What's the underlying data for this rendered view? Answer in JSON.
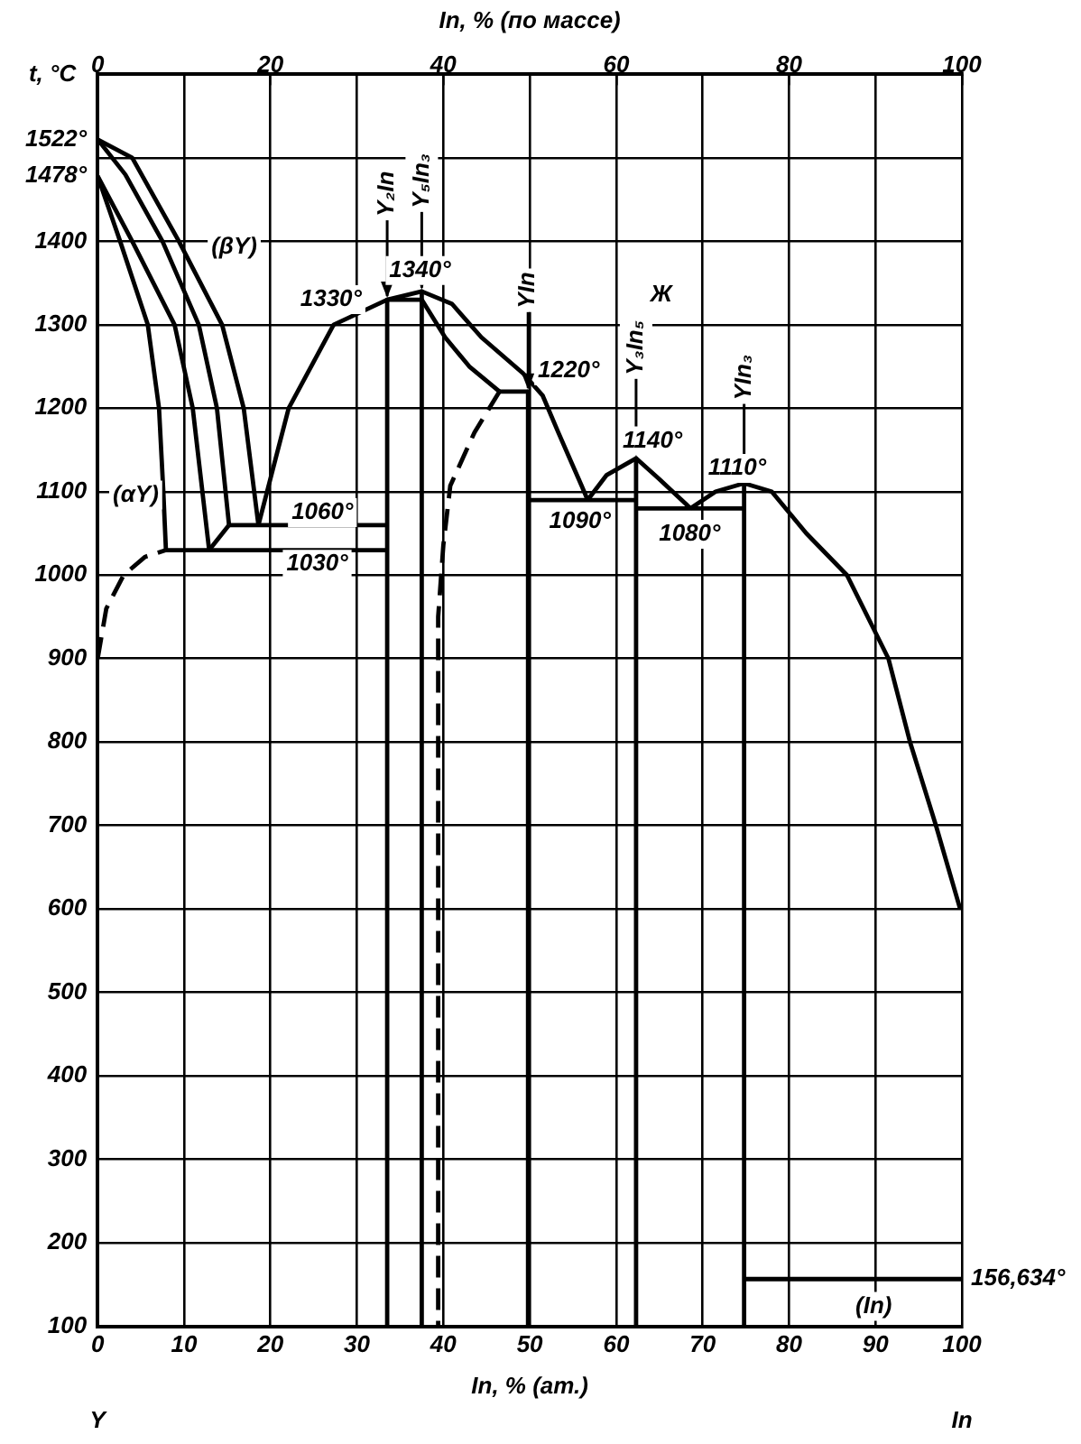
{
  "chart_data": {
    "type": "line",
    "xlabel": "In, % (ат.)",
    "x2label": "In, % (по массе)",
    "ylabel": "t, °C",
    "xlim": [
      0,
      100
    ],
    "xticks": [
      0,
      10,
      20,
      30,
      40,
      50,
      60,
      70,
      80,
      90,
      100
    ],
    "x2lim": [
      0,
      100
    ],
    "x2ticks": [
      0,
      20,
      40,
      60,
      80,
      100
    ],
    "ylim": [
      100,
      1600
    ],
    "yticks": [
      100,
      200,
      300,
      400,
      500,
      600,
      700,
      800,
      900,
      1000,
      1100,
      1200,
      1300,
      1400,
      {
        "value": 1478,
        "label": "1478°"
      },
      {
        "value": 1500,
        "label": null
      },
      {
        "value": 1522,
        "label": "1522°"
      }
    ],
    "grid": true,
    "legend": false,
    "marker": "none",
    "series": [
      {
        "color": "#000000",
        "x": [
          0,
          4,
          9.4,
          14.4,
          16.9,
          18.6
        ],
        "values": [
          1522,
          1500,
          1400,
          1300,
          1200,
          1060
        ]
      },
      {
        "color": "#000000",
        "x": [
          0,
          3.2,
          7.5,
          11.7,
          13.8,
          15.2
        ],
        "values": [
          1522,
          1480,
          1400,
          1300,
          1200,
          1060
        ]
      },
      {
        "color": "#000000",
        "x": [
          0,
          4,
          8.9,
          11,
          12.9
        ],
        "values": [
          1478,
          1400,
          1300,
          1200,
          1030
        ]
      },
      {
        "color": "#000000",
        "x": [
          0,
          2.6,
          5.8,
          7.1,
          7.6,
          7.9
        ],
        "values": [
          1478,
          1400,
          1300,
          1200,
          1100,
          1030
        ]
      },
      {
        "color": "#000000",
        "x": [
          12.9,
          15.2
        ],
        "values": [
          1030,
          1060
        ]
      },
      {
        "color": "#000000",
        "x": [
          15.2,
          33.5
        ],
        "values": [
          1060,
          1060
        ]
      },
      {
        "color": "#000000",
        "x": [
          7.9,
          33.5
        ],
        "values": [
          1030,
          1030
        ]
      },
      {
        "color": "#000000",
        "line_style": "dashed",
        "x": [
          0,
          1,
          3,
          5.5,
          7.9
        ],
        "values": [
          900,
          960,
          1000,
          1022,
          1030
        ]
      },
      {
        "color": "#000000",
        "x": [
          18.6,
          19.6,
          22.1,
          27.3,
          33.5,
          37.5,
          41,
          44.4,
          49.2,
          51.5,
          53.3,
          56,
          56.7
        ],
        "values": [
          1060,
          1100,
          1200,
          1300,
          1330,
          1340,
          1325,
          1285,
          1242,
          1215,
          1171,
          1107,
          1090
        ]
      },
      {
        "color": "#000000",
        "x": [
          33.5,
          37.5
        ],
        "values": [
          1330,
          1330
        ]
      },
      {
        "name": "Y₂In",
        "color": "#000000",
        "x": [
          33.5,
          33.5
        ],
        "values": [
          1330,
          100
        ]
      },
      {
        "name": "Y₅In₃",
        "color": "#000000",
        "x": [
          37.5,
          37.5
        ],
        "values": [
          1340,
          100
        ]
      },
      {
        "color": "#000000",
        "x": [
          37.5,
          40.2,
          43,
          46.5
        ],
        "values": [
          1330,
          1285,
          1250,
          1220
        ]
      },
      {
        "color": "#000000",
        "x": [
          46.5,
          49.8
        ],
        "values": [
          1220,
          1220
        ]
      },
      {
        "name": "YIn",
        "color": "#000000",
        "x": [
          49.8,
          49.8
        ],
        "values": [
          1220,
          100
        ]
      },
      {
        "color": "#000000",
        "line_style": "dashed",
        "x": [
          46.5,
          43.6,
          40.8,
          40,
          39.4,
          39.4
        ],
        "values": [
          1220,
          1171,
          1107,
          1036,
          950,
          100
        ]
      },
      {
        "color": "#000000",
        "x": [
          49.8,
          62.3
        ],
        "values": [
          1090,
          1090
        ]
      },
      {
        "color": "#000000",
        "x": [
          56.7,
          58.9,
          62.3,
          65,
          68.6
        ],
        "values": [
          1090,
          1120,
          1140,
          1115,
          1080
        ]
      },
      {
        "name": "Y₃In₅",
        "color": "#000000",
        "x": [
          62.3,
          62.3
        ],
        "values": [
          1140,
          100
        ]
      },
      {
        "color": "#000000",
        "x": [
          62.3,
          74.8
        ],
        "values": [
          1080,
          1080
        ]
      },
      {
        "color": "#000000",
        "x": [
          68.6,
          71.5,
          74.8,
          78,
          82,
          86.7,
          91.5,
          94,
          97,
          99.8
        ],
        "values": [
          1080,
          1100,
          1110,
          1100,
          1050,
          1000,
          900,
          800,
          700,
          600
        ]
      },
      {
        "name": "YIn₃",
        "color": "#000000",
        "x": [
          74.8,
          74.8
        ],
        "values": [
          1110,
          100
        ]
      },
      {
        "color": "#000000",
        "x": [
          74.8,
          100
        ],
        "values": [
          156.634,
          156.634
        ]
      }
    ],
    "annotations": [
      {
        "text": "1330°",
        "x": 27,
        "y": 1330
      },
      {
        "text": "1340°",
        "x": 37.3,
        "y": 1365
      },
      {
        "text": "1220°",
        "x": 54.5,
        "y": 1245
      },
      {
        "text": "1060°",
        "x": 26,
        "y": 1075
      },
      {
        "text": "1030°",
        "x": 25.4,
        "y": 1013
      },
      {
        "text": "1090°",
        "x": 55.8,
        "y": 1064
      },
      {
        "text": "1140°",
        "x": 64.2,
        "y": 1161
      },
      {
        "text": "1080°",
        "x": 68.5,
        "y": 1049
      },
      {
        "text": "1110°",
        "x": 74,
        "y": 1128
      },
      {
        "text": "(βY)",
        "x": 15.8,
        "y": 1393
      },
      {
        "text": "(αY)",
        "x": 4.4,
        "y": 1096
      },
      {
        "text": "Ж",
        "x": 65.2,
        "y": 1336
      },
      {
        "text": "(In)",
        "x": 89.8,
        "y": 124
      },
      {
        "text": "156,634°",
        "x": 100,
        "y": 156.634
      },
      "Y",
      "In"
    ]
  }
}
